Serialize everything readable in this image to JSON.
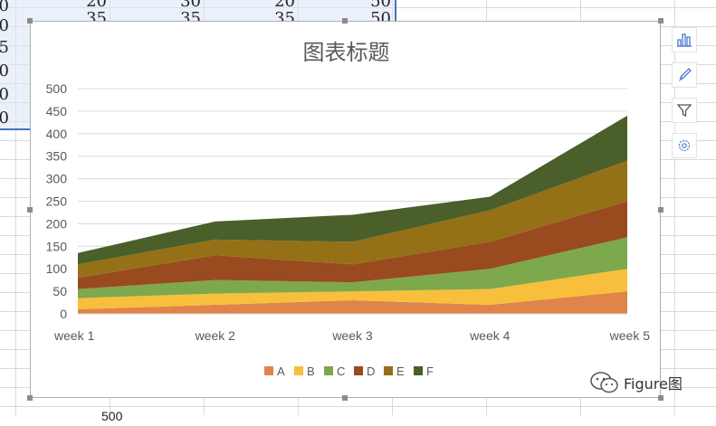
{
  "sheet": {
    "cells_top_row": [
      "20",
      "30",
      "20",
      "50"
    ],
    "cells_second_row": [
      "35",
      "35",
      "35",
      "50"
    ],
    "left_edge_digits": [
      "0",
      "0",
      "5",
      "0",
      "0",
      "0"
    ],
    "bottom_cell": "500"
  },
  "colors": {
    "A": "#e0844a",
    "B": "#f7bf3c",
    "C": "#7ea84c",
    "D": "#9a4a1f",
    "E": "#947016",
    "F": "#4a5f2a",
    "axis_text": "#595959",
    "gridline": "#d9d9d9"
  },
  "sidebar": {
    "icons": [
      "chart-elements-icon",
      "chart-styles-icon",
      "chart-filters-icon",
      "chart-settings-icon"
    ]
  },
  "watermark": {
    "text": "Figure图",
    "icon": "wechat-icon"
  },
  "chart_data": {
    "type": "area",
    "stacked": true,
    "title": "图表标题",
    "xlabel": "",
    "ylabel": "",
    "categories": [
      "week 1",
      "week 2",
      "week 3",
      "week 4",
      "week 5"
    ],
    "ylim": [
      0,
      500
    ],
    "yticks": [
      0,
      50,
      100,
      150,
      200,
      250,
      300,
      350,
      400,
      450,
      500
    ],
    "grid": true,
    "legend": "bottom",
    "series": [
      {
        "name": "A",
        "values": [
          10,
          20,
          30,
          20,
          50
        ]
      },
      {
        "name": "B",
        "values": [
          25,
          25,
          20,
          35,
          50
        ]
      },
      {
        "name": "C",
        "values": [
          20,
          30,
          20,
          45,
          70
        ]
      },
      {
        "name": "D",
        "values": [
          25,
          55,
          40,
          60,
          80
        ]
      },
      {
        "name": "E",
        "values": [
          30,
          35,
          50,
          70,
          90
        ]
      },
      {
        "name": "F",
        "values": [
          25,
          40,
          60,
          30,
          100
        ]
      }
    ]
  }
}
